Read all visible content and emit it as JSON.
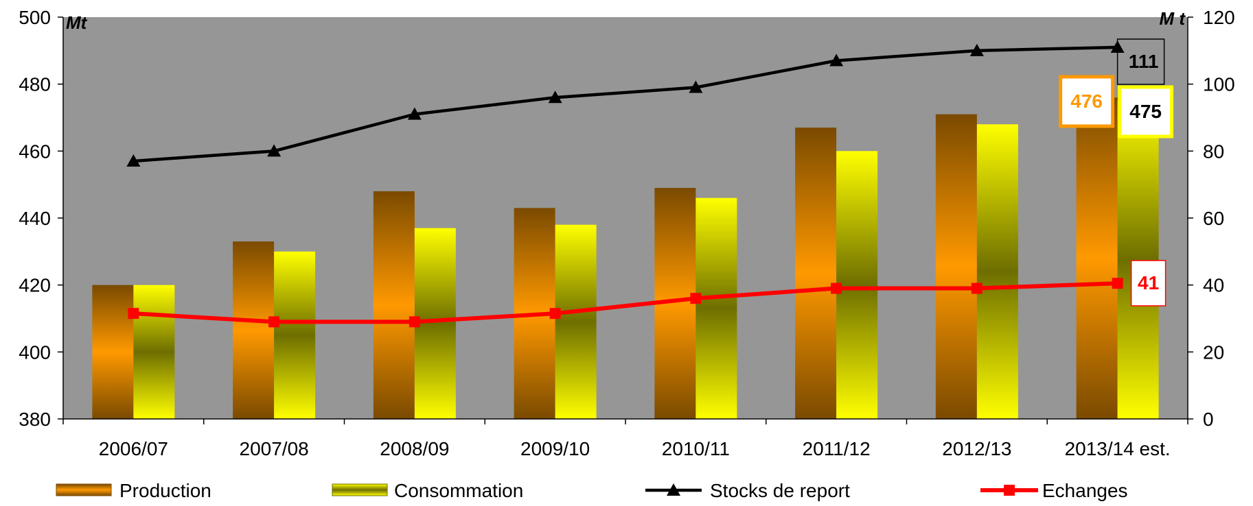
{
  "chart_data": {
    "type": "bar",
    "title": "",
    "categories": [
      "2006/07",
      "2007/08",
      "2008/09",
      "2009/10",
      "2010/11",
      "2011/12",
      "2012/13",
      "2013/14 est."
    ],
    "left_axis": {
      "label": "Mt",
      "ylim": [
        380,
        500
      ],
      "ticks": [
        "380",
        "400",
        "420",
        "440",
        "460",
        "480",
        "500"
      ]
    },
    "right_axis": {
      "label": "M t",
      "ylim": [
        0,
        120
      ],
      "ticks": [
        "0",
        "20",
        "40",
        "60",
        "80",
        "100",
        "120"
      ]
    },
    "series": [
      {
        "name": "Production",
        "type": "bar",
        "axis": "left",
        "values": [
          420,
          433,
          448,
          443,
          449,
          467,
          471,
          476
        ]
      },
      {
        "name": "Consommation",
        "type": "bar",
        "axis": "left",
        "values": [
          420,
          430,
          437,
          438,
          446,
          460,
          468,
          475
        ]
      },
      {
        "name": "Stocks de report",
        "type": "line",
        "axis": "right",
        "marker": "triangle",
        "color": "#000000",
        "values": [
          77,
          80,
          91,
          96,
          99,
          107,
          110,
          111
        ]
      },
      {
        "name": "Echanges",
        "type": "line",
        "axis": "right",
        "marker": "square",
        "color": "#ff0000",
        "values": [
          31.5,
          29,
          29,
          31.5,
          36,
          39,
          39,
          40.5
        ]
      }
    ],
    "annotations": [
      {
        "series": "Production",
        "text": "476",
        "color": "#ff9900"
      },
      {
        "series": "Consommation",
        "text": "475",
        "color": "#ffff00"
      },
      {
        "series": "Stocks de report",
        "text": "111",
        "color": "#000000"
      },
      {
        "series": "Echanges",
        "text": "41",
        "color": "#ff0000"
      }
    ],
    "plot_background": "#969696",
    "grid": false,
    "legend_position": "bottom"
  }
}
